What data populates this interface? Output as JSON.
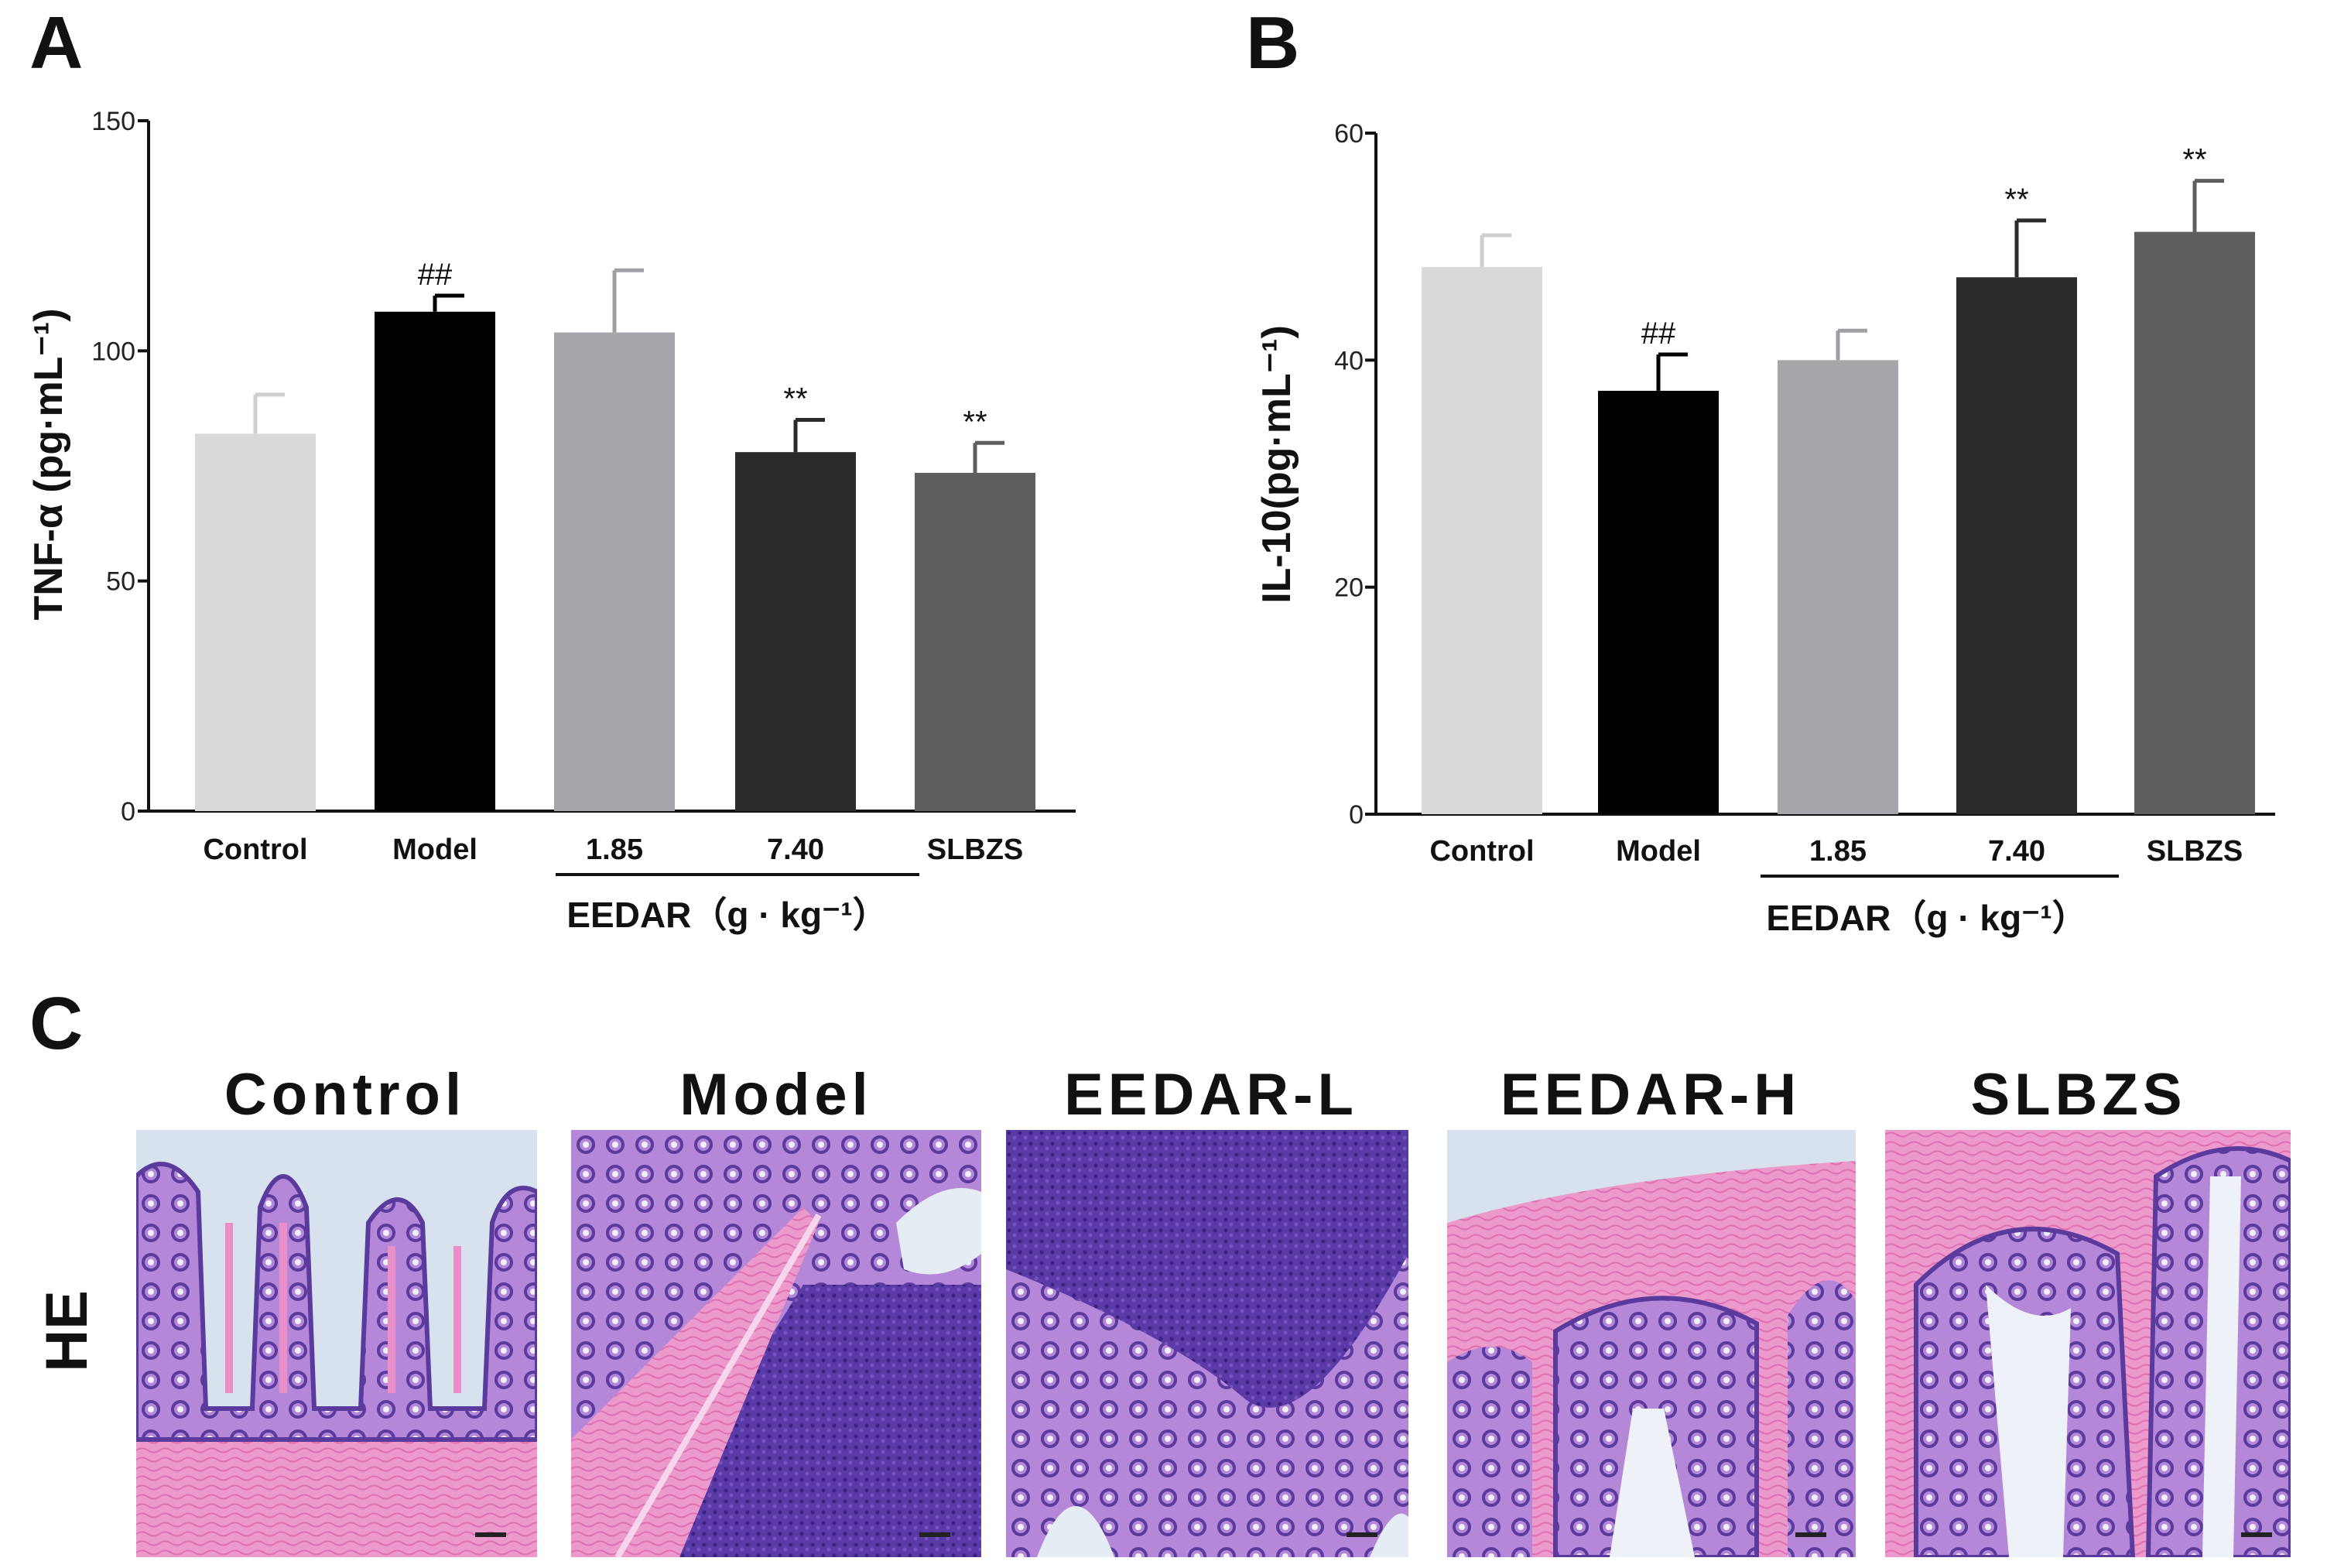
{
  "panel_labels": [
    "A",
    "B",
    "C"
  ],
  "chart_data": [
    {
      "type": "bar",
      "panel": "A",
      "ylabel": "TNF-α (pg·mL⁻¹)",
      "categories": [
        "Control",
        "Model",
        "1.85",
        "7.40",
        "SLBZS"
      ],
      "values": [
        82,
        108.5,
        104,
        78,
        73.5
      ],
      "errors": [
        8.5,
        3.5,
        13.5,
        7,
        6.5
      ],
      "annotations": [
        "",
        "##",
        "",
        "**",
        "**"
      ],
      "bar_colors": [
        "#d9d9d9",
        "#000000",
        "#a6a5aa",
        "#2b2b2b",
        "#5e5e5e"
      ],
      "group_label": "EEDAR（g · kg⁻¹）",
      "group_categories": [
        "1.85",
        "7.40"
      ],
      "ylim": [
        0,
        150
      ],
      "yticks": [
        0,
        50,
        100,
        150
      ]
    },
    {
      "type": "bar",
      "panel": "B",
      "ylabel": "IL-10(pg·mL⁻¹)",
      "categories": [
        "Control",
        "Model",
        "1.85",
        "7.40",
        "SLBZS"
      ],
      "values": [
        48.2,
        37.3,
        40,
        47.3,
        51.3
      ],
      "errors": [
        2.8,
        3.2,
        2.6,
        5,
        4.5
      ],
      "annotations": [
        "",
        "##",
        "",
        "**",
        "**"
      ],
      "bar_colors": [
        "#d9d9d9",
        "#000000",
        "#a6a5aa",
        "#2b2b2b",
        "#5e5e5e"
      ],
      "group_label": "EEDAR（g · kg⁻¹）",
      "group_categories": [
        "1.85",
        "7.40"
      ],
      "ylim": [
        0,
        60
      ],
      "yticks": [
        0,
        20,
        40,
        60
      ]
    }
  ],
  "histology": {
    "row_label": "HE",
    "columns": [
      "Control",
      "Model",
      "EEDAR-L",
      "EEDAR-H",
      "SLBZS"
    ],
    "colors": {
      "tissue": "#9a66c8",
      "dark_tissue": "#5e3aa8",
      "stroma": "#e98ec8",
      "background": "#d8e2ee"
    }
  }
}
